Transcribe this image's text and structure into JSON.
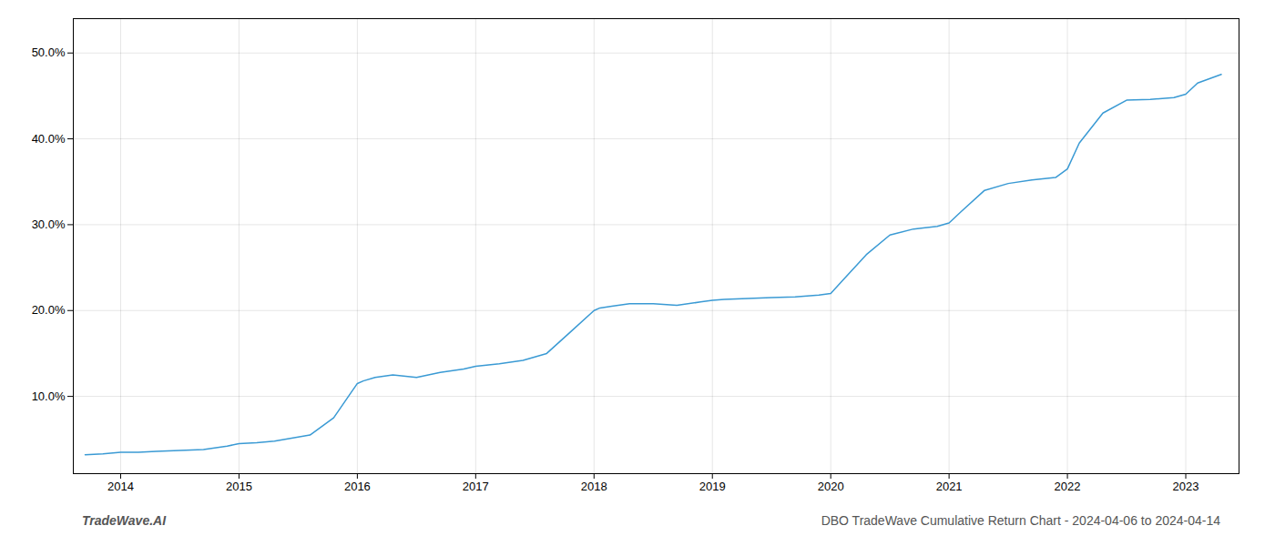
{
  "chart_data": {
    "type": "line",
    "x": [
      2013.7,
      2013.85,
      2014.0,
      2014.15,
      2014.3,
      2014.5,
      2014.7,
      2014.9,
      2015.0,
      2015.15,
      2015.3,
      2015.6,
      2015.8,
      2016.0,
      2016.05,
      2016.15,
      2016.3,
      2016.5,
      2016.7,
      2016.9,
      2017.0,
      2017.2,
      2017.4,
      2017.6,
      2017.8,
      2018.0,
      2018.05,
      2018.15,
      2018.3,
      2018.5,
      2018.7,
      2018.9,
      2019.0,
      2019.1,
      2019.3,
      2019.5,
      2019.7,
      2019.9,
      2020.0,
      2020.1,
      2020.3,
      2020.5,
      2020.7,
      2020.9,
      2021.0,
      2021.1,
      2021.3,
      2021.5,
      2021.7,
      2021.9,
      2022.0,
      2022.1,
      2022.3,
      2022.5,
      2022.7,
      2022.9,
      2023.0,
      2023.1,
      2023.3
    ],
    "values": [
      3.2,
      3.3,
      3.5,
      3.5,
      3.6,
      3.7,
      3.8,
      4.2,
      4.5,
      4.6,
      4.8,
      5.5,
      7.5,
      11.5,
      11.8,
      12.2,
      12.5,
      12.2,
      12.8,
      13.2,
      13.5,
      13.8,
      14.2,
      15.0,
      17.5,
      20.0,
      20.3,
      20.5,
      20.8,
      20.8,
      20.6,
      21.0,
      21.2,
      21.3,
      21.4,
      21.5,
      21.6,
      21.8,
      22.0,
      23.5,
      26.5,
      28.8,
      29.5,
      29.8,
      30.2,
      31.5,
      34.0,
      34.8,
      35.2,
      35.5,
      36.5,
      39.5,
      43.0,
      44.5,
      44.6,
      44.8,
      45.2,
      46.5,
      47.5
    ],
    "color": "#3a9ad4",
    "xlim": [
      2013.6,
      2023.45
    ],
    "xticks": [
      2014,
      2015,
      2016,
      2017,
      2018,
      2019,
      2020,
      2021,
      2022,
      2023
    ],
    "ylim": [
      1.0,
      54.0
    ],
    "yticks": [
      {
        "value": 10,
        "label": "10.0%"
      },
      {
        "value": 20,
        "label": "20.0%"
      },
      {
        "value": 30,
        "label": "30.0%"
      },
      {
        "value": 40,
        "label": "40.0%"
      },
      {
        "value": 50,
        "label": "50.0%"
      }
    ],
    "grid": true,
    "annotations": [
      "TradeWave.AI",
      "DBO TradeWave Cumulative Return Chart - 2024-04-06 to 2024-04-14"
    ]
  }
}
